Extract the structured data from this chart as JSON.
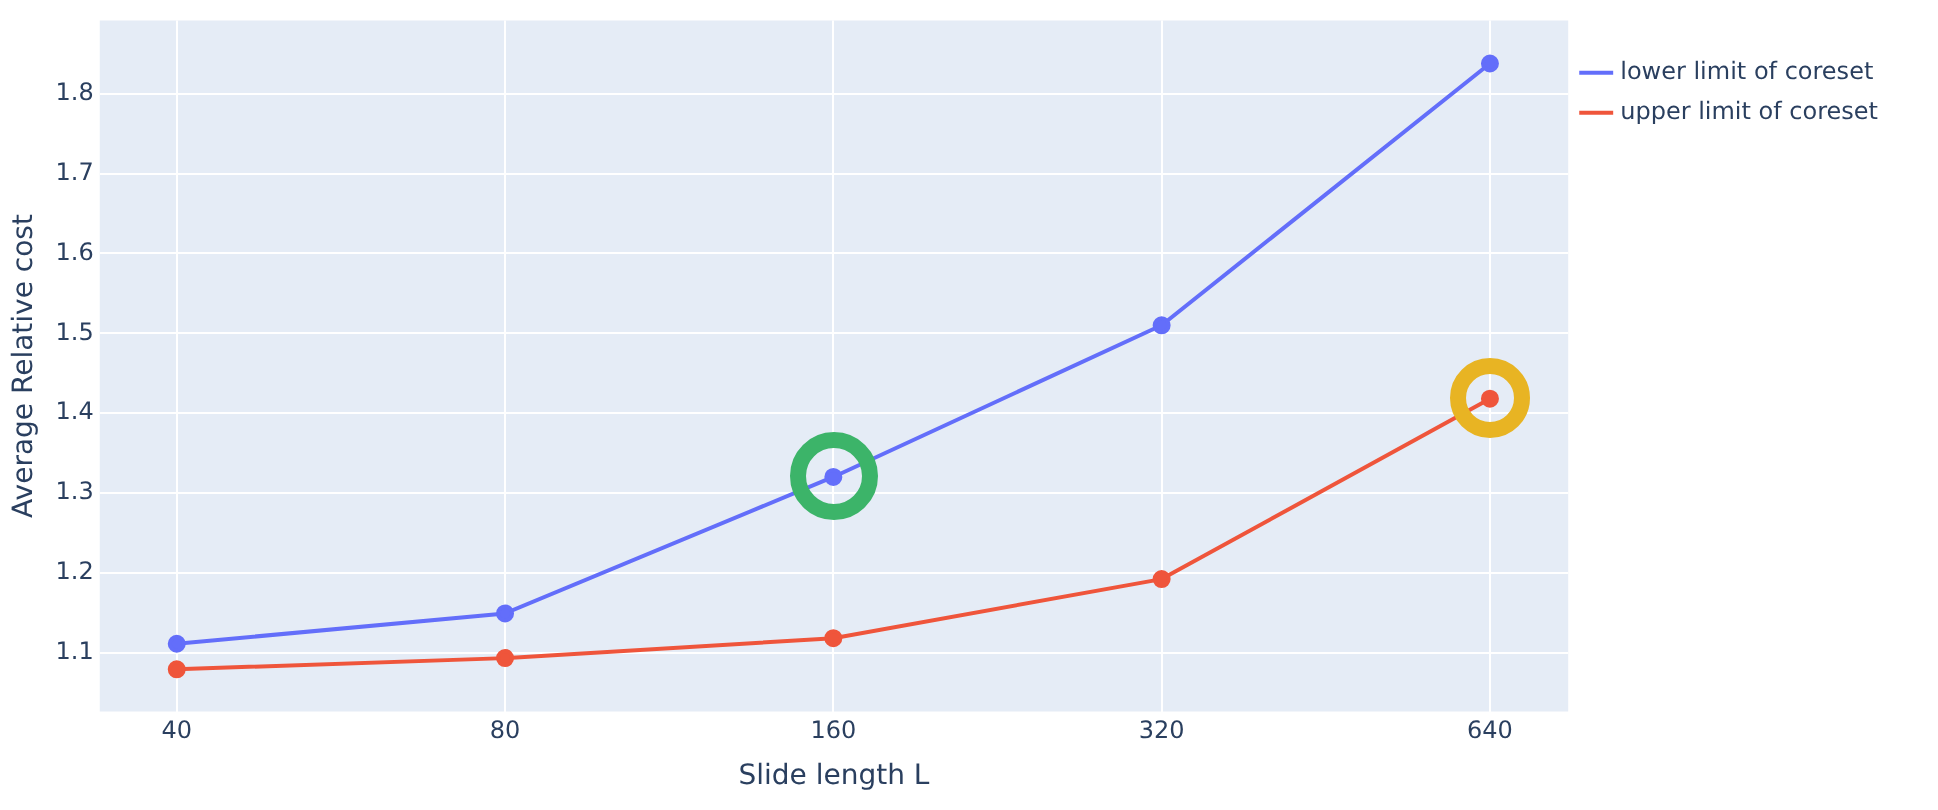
{
  "chart_data": {
    "type": "line",
    "xlabel": "Slide length L",
    "ylabel": "Average Relative cost",
    "x": [
      40,
      80,
      160,
      320,
      640
    ],
    "series": [
      {
        "name": "lower limit of coreset",
        "color": "#636efa",
        "values": [
          1.111,
          1.149,
          1.32,
          1.51,
          1.838
        ]
      },
      {
        "name": "upper limit of coreset",
        "color": "#ef553b",
        "values": [
          1.079,
          1.093,
          1.118,
          1.192,
          1.418
        ]
      }
    ],
    "log": "x",
    "xlim": [
      34,
      755
    ],
    "xticks": [
      40,
      80,
      160,
      320,
      640
    ],
    "ylim": [
      1.026,
      1.892
    ],
    "yticks": [
      1.1,
      1.2,
      1.3,
      1.4,
      1.5,
      1.6,
      1.7,
      1.8
    ],
    "grid": true,
    "legend": "top right",
    "marker": "circle",
    "line_style": "solid"
  }
}
